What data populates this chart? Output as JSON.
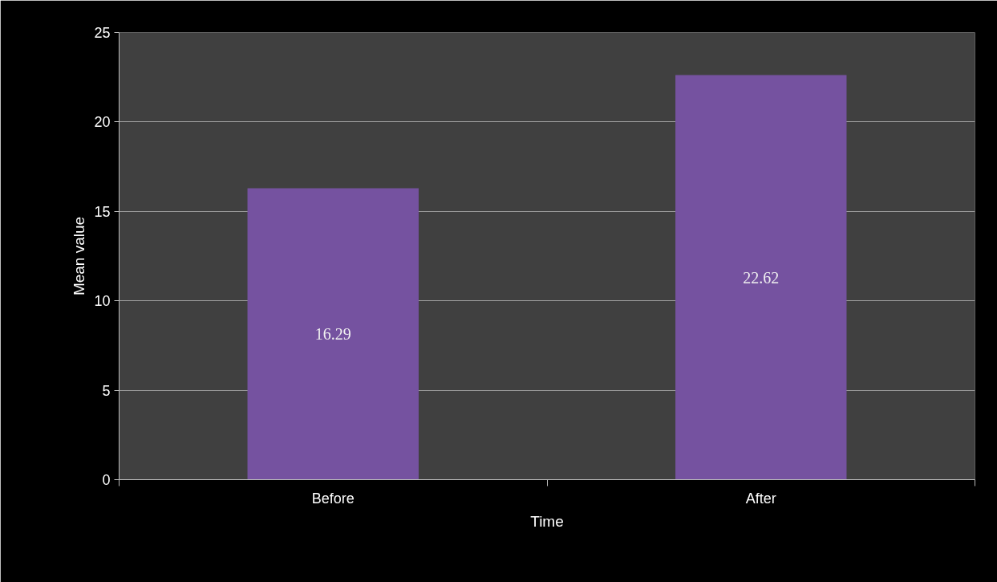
{
  "chart_data": {
    "type": "bar",
    "xlabel": "Time",
    "ylabel": "Mean value",
    "categories": [
      "Before",
      "After"
    ],
    "values": [
      16.29,
      22.62
    ],
    "color": "#7552a0",
    "ylim": [
      0,
      25
    ],
    "yticks": [
      0,
      5,
      10,
      15,
      20,
      25
    ],
    "grid": "y",
    "data_labels": true
  }
}
